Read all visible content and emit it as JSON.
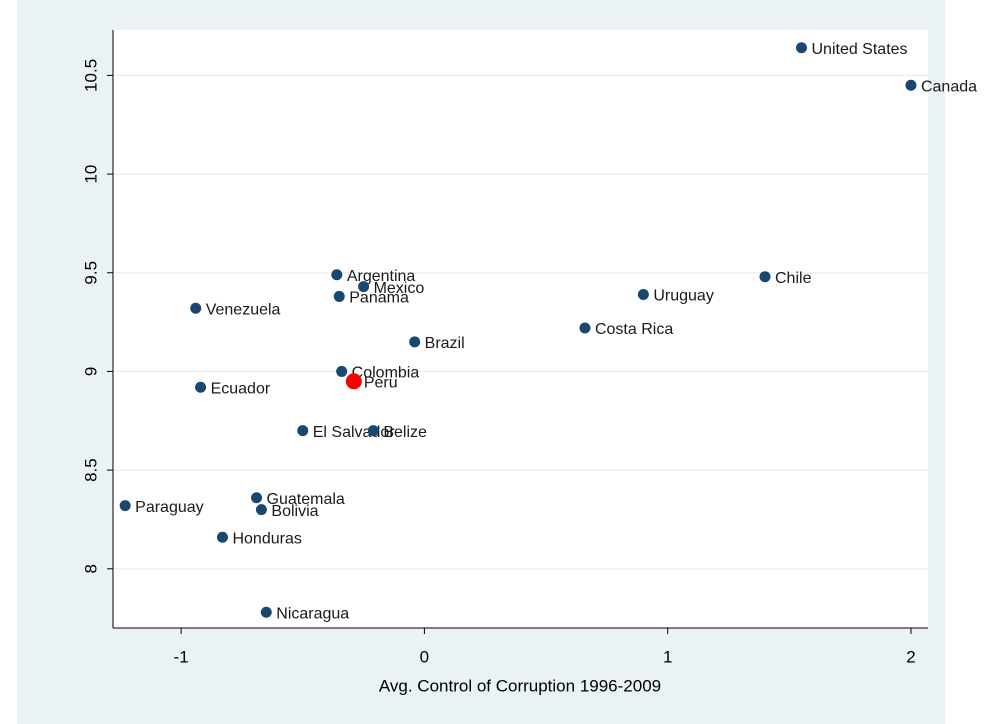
{
  "chart_data": {
    "type": "scatter",
    "x_label": "Avg. Control of Corruption 1996-2009",
    "labels": [
      "United States",
      "Canada",
      "Chile",
      "Uruguay",
      "Costa Rica",
      "Argentina",
      "Mexico",
      "Panama",
      "Venezuela",
      "Brazil",
      "Colombia",
      "Peru",
      "Ecuador",
      "El Salvador",
      "Belize",
      "Guatemala",
      "Bolivia",
      "Paraguay",
      "Honduras",
      "Nicaragua"
    ],
    "x": [
      1.55,
      2.0,
      1.4,
      0.9,
      0.66,
      -0.36,
      -0.25,
      -0.35,
      -0.94,
      -0.04,
      -0.34,
      -0.29,
      -0.92,
      -0.5,
      -0.21,
      -0.69,
      -0.67,
      -1.23,
      -0.83,
      -0.65
    ],
    "y": [
      10.64,
      10.45,
      9.48,
      9.39,
      9.22,
      9.49,
      9.43,
      9.38,
      9.32,
      9.15,
      9.0,
      8.95,
      8.92,
      8.7,
      8.7,
      8.36,
      8.3,
      8.32,
      8.16,
      7.78
    ],
    "color": "#1a476f",
    "colors": [
      "#1a476f",
      "#1a476f",
      "#1a476f",
      "#1a476f",
      "#1a476f",
      "#1a476f",
      "#1a476f",
      "#1a476f",
      "#1a476f",
      "#1a476f",
      "#1a476f",
      "#ff0000",
      "#1a476f",
      "#1a476f",
      "#1a476f",
      "#1a476f",
      "#1a476f",
      "#1a476f",
      "#1a476f",
      "#1a476f"
    ],
    "xlim": [
      -1.28,
      2.07
    ],
    "ylim": [
      7.7,
      10.73
    ],
    "xticks": [
      -1,
      0,
      1,
      2
    ],
    "yticks": [
      8,
      8.5,
      9,
      9.5,
      10,
      10.5
    ],
    "grid": true
  }
}
